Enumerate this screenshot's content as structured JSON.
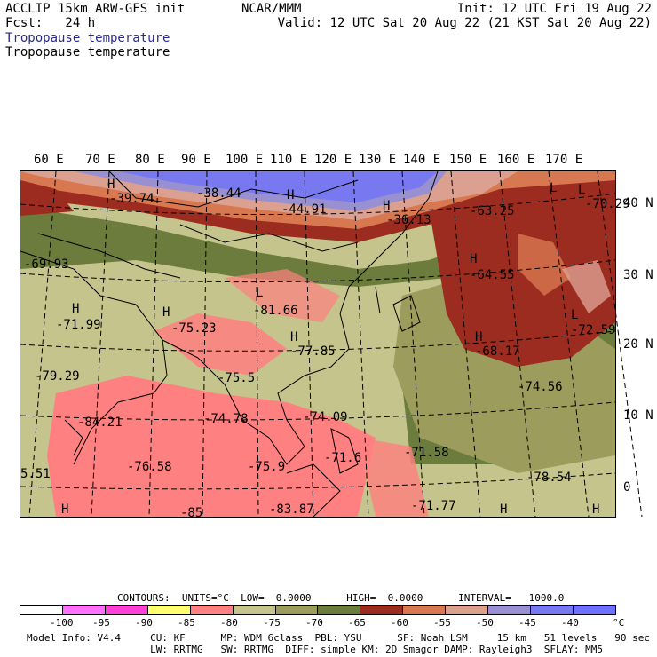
{
  "header": {
    "line1_left": "ACCLIP 15km ARW-GFS init",
    "line2_left": "Fcst:   24 h",
    "center": "NCAR/MMM",
    "init": "Init: 12 UTC Fri 19 Aug 22",
    "valid": "Valid: 12 UTC Sat 20 Aug 22 (21 KST Sat 20 Aug 22)",
    "field_title_1": "Tropopause temperature",
    "field_title_2": "Tropopause temperature",
    "field_title_1_color": "#2a2a8c"
  },
  "map": {
    "lon_labels": [
      "60 E",
      "70 E",
      "80 E",
      "90 E",
      "100 E",
      "110 E",
      "120 E",
      "130 E",
      "140 E",
      "150 E",
      "160 E",
      "170 E"
    ],
    "lat_labels": [
      "40 N",
      "30 N",
      "20 N",
      "10 N",
      "0"
    ],
    "annotations": [
      {
        "text": "H",
        "kind": "high"
      },
      {
        "text": "-39.74",
        "kind": "value"
      },
      {
        "text": "-38.44",
        "kind": "value"
      },
      {
        "text": "H",
        "kind": "high"
      },
      {
        "text": "-44.91",
        "kind": "value"
      },
      {
        "text": "H",
        "kind": "high"
      },
      {
        "text": "-36.13",
        "kind": "value"
      },
      {
        "text": "L",
        "kind": "low"
      },
      {
        "text": "-63.25",
        "kind": "value"
      },
      {
        "text": "L",
        "kind": "low"
      },
      {
        "text": "-70.29",
        "kind": "value"
      },
      {
        "text": "-69.93",
        "kind": "value"
      },
      {
        "text": "L",
        "kind": "low"
      },
      {
        "text": "-81.66",
        "kind": "value"
      },
      {
        "text": "H",
        "kind": "high"
      },
      {
        "text": "-71.99",
        "kind": "value"
      },
      {
        "text": "H",
        "kind": "high"
      },
      {
        "text": "-75.23",
        "kind": "value"
      },
      {
        "text": "H",
        "kind": "high"
      },
      {
        "text": "-77.85",
        "kind": "value"
      },
      {
        "text": "H",
        "kind": "high"
      },
      {
        "text": "-64.55",
        "kind": "value"
      },
      {
        "text": "H",
        "kind": "high"
      },
      {
        "text": "-68.17",
        "kind": "value"
      },
      {
        "text": "L",
        "kind": "low"
      },
      {
        "text": "-72.59",
        "kind": "value"
      },
      {
        "text": "-79.29",
        "kind": "value"
      },
      {
        "text": "-75.5",
        "kind": "value"
      },
      {
        "text": "-74.56",
        "kind": "value"
      },
      {
        "text": "-84.21",
        "kind": "value"
      },
      {
        "text": "-74.78",
        "kind": "value"
      },
      {
        "text": "-74.09",
        "kind": "value"
      },
      {
        "text": "-71.6",
        "kind": "value"
      },
      {
        "text": "-71.58",
        "kind": "value"
      },
      {
        "text": "-76.58",
        "kind": "value"
      },
      {
        "text": "-75.9",
        "kind": "value"
      },
      {
        "text": "-78.54",
        "kind": "value"
      },
      {
        "text": "5.51",
        "kind": "value"
      },
      {
        "text": "-71.77",
        "kind": "value"
      },
      {
        "text": "-85",
        "kind": "value"
      },
      {
        "text": "-83.87",
        "kind": "value"
      },
      {
        "text": "H",
        "kind": "high"
      },
      {
        "text": "H",
        "kind": "high"
      },
      {
        "text": "H",
        "kind": "high"
      }
    ]
  },
  "contours_line": "CONTOURS:  UNITS=°C  LOW=  0.0000      HIGH=  0.0000      INTERVAL=   1000.0",
  "colorbar": {
    "colors": [
      "#ffffff",
      "#ff70ff",
      "#ff40d8",
      "#ffff70",
      "#ff8080",
      "#c4c48c",
      "#9c9c5c",
      "#6c7c3c",
      "#9c2c20",
      "#d87850",
      "#dca090",
      "#9890d0",
      "#7878f0",
      "#7070ff"
    ],
    "labels": [
      "-100",
      "-95",
      "-90",
      "-85",
      "-80",
      "-75",
      "-70",
      "-65",
      "-60",
      "-55",
      "-50",
      "-45",
      "-40",
      "°C"
    ]
  },
  "footer": {
    "line1": "Model Info: V4.4     CU: KF      MP: WDM 6class  PBL: YSU      SF: Noah LSM     15 km   51 levels   90 sec",
    "line2": "                     LW: RRTMG   SW: RRTMG  DIFF: simple KM: 2D Smagor DAMP: Rayleigh3  SFLAY: MM5"
  }
}
